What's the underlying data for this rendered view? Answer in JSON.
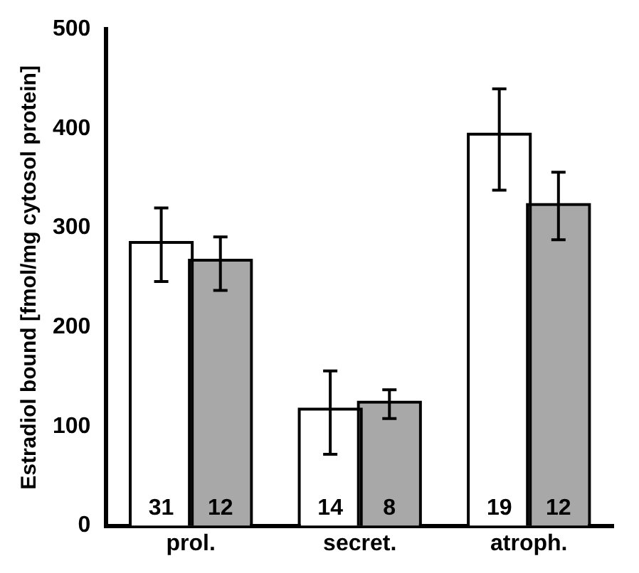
{
  "chart_data": {
    "type": "bar",
    "ylabel": "Estradiol bound [fmol/mg cytosol protein]",
    "categories": [
      "prol.",
      "secret.",
      "atroph."
    ],
    "series": [
      {
        "color": "#ffffff",
        "values": [
          284,
          116,
          393
        ],
        "errors": [
          [
            246,
            320
          ],
          [
            72,
            156
          ],
          [
            338,
            440
          ]
        ]
      },
      {
        "color": "#a8a8a8",
        "values": [
          266,
          123,
          322
        ],
        "errors": [
          [
            237,
            291
          ],
          [
            108,
            137
          ],
          [
            288,
            356
          ]
        ]
      }
    ],
    "annotations": [
      "31",
      "12",
      "14",
      "8",
      "19",
      "12"
    ],
    "ylim": [
      0,
      500
    ],
    "yticks": [
      0,
      100,
      200,
      300,
      400,
      500
    ],
    "grid": false,
    "legend": false
  }
}
